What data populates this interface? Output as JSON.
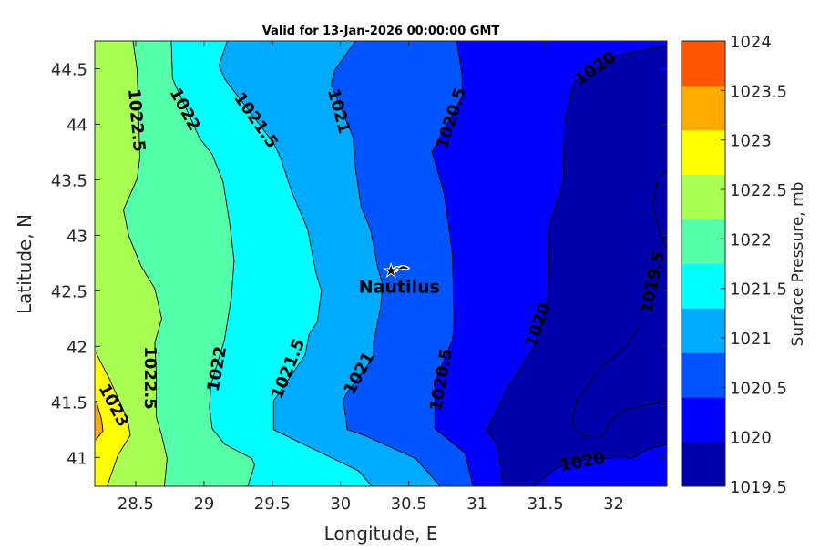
{
  "chart_data": {
    "type": "contour",
    "title": "Valid for 13-Jan-2026 00:00:00 GMT",
    "xlabel": "Longitude, E",
    "ylabel": "Latitude, N",
    "xlim": [
      28.2,
      32.39
    ],
    "ylim": [
      40.74,
      44.75
    ],
    "xticks": [
      28.5,
      29,
      29.5,
      30,
      30.5,
      31,
      31.5,
      32
    ],
    "xtick_labels": [
      "28.5",
      "29",
      "29.5",
      "30",
      "30.5",
      "31",
      "31.5",
      "32"
    ],
    "yticks": [
      41,
      41.5,
      42,
      42.5,
      43,
      43.5,
      44,
      44.5
    ],
    "ytick_labels": [
      "41",
      "41.5",
      "42",
      "42.5",
      "43",
      "43.5",
      "44",
      "44.5"
    ],
    "grid": false,
    "colorbar": {
      "label": "Surface Pressure, mb",
      "ticks": [
        "1019.5",
        "1020",
        "1020.5",
        "1021",
        "1021.5",
        "1022",
        "1022.5",
        "1023",
        "1023.5",
        "1024"
      ],
      "band_colors": [
        "#0000aa",
        "#0000ff",
        "#0055ff",
        "#00aaff",
        "#00ffff",
        "#55ffaa",
        "#aaff55",
        "#ffff00",
        "#ffaa00",
        "#ff5500"
      ]
    },
    "base_color": "#aaff55",
    "contours": [
      {
        "level": 1022.5,
        "fill_right": "#55ffaa",
        "points": [
          [
            28.48,
            44.75
          ],
          [
            28.51,
            44.49
          ],
          [
            28.53,
            43.7
          ],
          [
            28.51,
            43.51
          ],
          [
            28.46,
            43.37
          ],
          [
            28.41,
            43.23
          ],
          [
            28.45,
            42.99
          ],
          [
            28.54,
            42.72
          ],
          [
            28.64,
            42.52
          ],
          [
            28.69,
            42.25
          ],
          [
            28.64,
            42.03
          ],
          [
            28.65,
            41.78
          ],
          [
            28.65,
            41.37
          ],
          [
            28.69,
            41.2
          ],
          [
            28.73,
            40.99
          ],
          [
            28.71,
            40.74
          ]
        ]
      },
      {
        "level": 1022,
        "fill_right": "#00ffff",
        "points": [
          [
            28.76,
            44.75
          ],
          [
            28.77,
            44.41
          ],
          [
            28.97,
            43.87
          ],
          [
            29.06,
            43.73
          ],
          [
            29.14,
            43.48
          ],
          [
            29.19,
            43.09
          ],
          [
            29.22,
            42.77
          ],
          [
            29.2,
            42.44
          ],
          [
            29.15,
            42.06
          ],
          [
            29.05,
            41.65
          ],
          [
            29.04,
            41.45
          ],
          [
            29.06,
            41.26
          ],
          [
            29.15,
            41.12
          ],
          [
            29.35,
            40.99
          ],
          [
            29.37,
            40.93
          ],
          [
            29.32,
            40.74
          ]
        ]
      },
      {
        "level": 1021.5,
        "fill_right": "#00aaff",
        "points": [
          [
            29.17,
            44.75
          ],
          [
            29.11,
            44.53
          ],
          [
            29.15,
            44.41
          ],
          [
            29.51,
            43.83
          ],
          [
            29.56,
            43.7
          ],
          [
            29.64,
            43.4
          ],
          [
            29.76,
            43.05
          ],
          [
            29.82,
            42.66
          ],
          [
            29.86,
            42.5
          ],
          [
            29.83,
            42.22
          ],
          [
            29.77,
            42.11
          ],
          [
            29.74,
            41.92
          ],
          [
            29.51,
            41.51
          ],
          [
            29.51,
            41.25
          ],
          [
            29.86,
            41.04
          ],
          [
            30.13,
            40.88
          ],
          [
            30.23,
            40.74
          ]
        ]
      },
      {
        "level": 1021,
        "fill_right": "#0055ff",
        "points": [
          [
            30.11,
            44.75
          ],
          [
            29.96,
            44.49
          ],
          [
            29.93,
            44.36
          ],
          [
            30.09,
            43.89
          ],
          [
            30.11,
            43.59
          ],
          [
            30.15,
            43.26
          ],
          [
            30.22,
            43.05
          ],
          [
            30.27,
            42.72
          ],
          [
            30.31,
            42.55
          ],
          [
            30.29,
            42.33
          ],
          [
            30.24,
            42.03
          ],
          [
            30.24,
            41.9
          ],
          [
            30.04,
            41.57
          ],
          [
            30.02,
            41.51
          ],
          [
            30.05,
            41.25
          ],
          [
            30.17,
            41.2
          ],
          [
            30.55,
            40.99
          ],
          [
            30.73,
            40.74
          ]
        ]
      },
      {
        "level": 1020.5,
        "fill_right": "#0000ff",
        "points": [
          [
            30.85,
            44.75
          ],
          [
            30.89,
            44.44
          ],
          [
            30.89,
            44.25
          ],
          [
            30.67,
            43.75
          ],
          [
            30.76,
            43.37
          ],
          [
            30.82,
            42.82
          ],
          [
            30.83,
            42.22
          ],
          [
            30.82,
            42.06
          ],
          [
            30.69,
            41.68
          ],
          [
            30.69,
            41.26
          ],
          [
            30.91,
            41.04
          ],
          [
            30.97,
            40.74
          ]
        ]
      }
    ],
    "navy_region": {
      "level": 1020,
      "fill": "#0000aa",
      "points": [
        [
          32.39,
          44.71
        ],
        [
          32.02,
          44.62
        ],
        [
          31.71,
          44.38
        ],
        [
          31.64,
          44.03
        ],
        [
          31.63,
          43.48
        ],
        [
          31.53,
          43.09
        ],
        [
          31.52,
          42.44
        ],
        [
          31.42,
          42.0
        ],
        [
          31.22,
          41.62
        ],
        [
          31.07,
          41.24
        ],
        [
          31.15,
          41.12
        ],
        [
          31.19,
          40.74
        ],
        [
          31.41,
          40.74
        ],
        [
          31.59,
          40.91
        ],
        [
          31.82,
          40.99
        ],
        [
          32.13,
          40.99
        ],
        [
          32.24,
          41.07
        ],
        [
          32.39,
          41.12
        ]
      ]
    },
    "low_lines": [
      {
        "level": 1019.5,
        "points": [
          [
            32.39,
            43.59
          ],
          [
            32.32,
            43.51
          ],
          [
            32.29,
            43.26
          ],
          [
            32.33,
            43.05
          ],
          [
            32.39,
            42.88
          ]
        ]
      },
      {
        "level": 1019.5,
        "points": [
          [
            32.19,
            42.18
          ],
          [
            32.09,
            42.0
          ],
          [
            31.91,
            41.81
          ],
          [
            31.73,
            41.51
          ],
          [
            31.69,
            41.29
          ],
          [
            31.77,
            41.2
          ],
          [
            31.91,
            41.18
          ],
          [
            31.99,
            41.34
          ],
          [
            32.09,
            41.43
          ],
          [
            32.39,
            41.51
          ]
        ]
      }
    ],
    "left_regions": [
      {
        "level": 1023,
        "fill": "#ffff00",
        "points": [
          [
            28.21,
            41.94
          ],
          [
            28.31,
            41.7
          ],
          [
            28.44,
            41.34
          ],
          [
            28.46,
            41.2
          ],
          [
            28.37,
            41.02
          ],
          [
            28.29,
            40.74
          ]
        ]
      },
      {
        "level": 1023.5,
        "fill": "#ffaa00",
        "points": [
          [
            28.21,
            41.51
          ],
          [
            28.25,
            41.34
          ],
          [
            28.26,
            41.24
          ],
          [
            28.21,
            41.16
          ]
        ]
      }
    ],
    "contour_labels": [
      "1022.5",
      "1022",
      "1021.5",
      "1021",
      "1020.5",
      "1020",
      "1022.5",
      "1022",
      "1021.5",
      "1021",
      "1020.5",
      "1020",
      "1019.5",
      "1023",
      "1020"
    ],
    "marker": {
      "label": "Nautilus",
      "lon": 30.37,
      "lat": 42.68
    }
  }
}
